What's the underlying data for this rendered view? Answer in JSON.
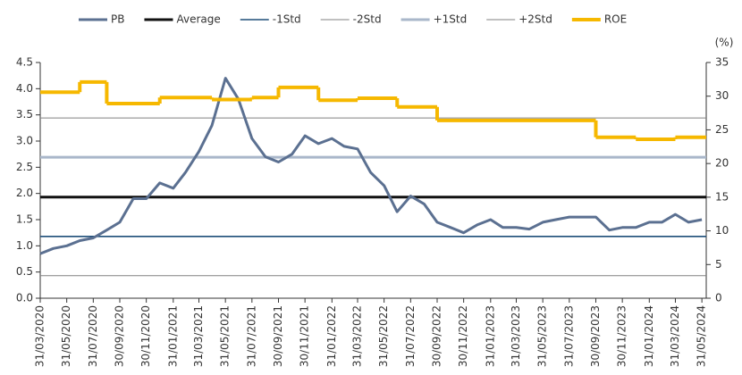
{
  "chart_data": {
    "type": "line",
    "y2label": "(%)",
    "xlim": [
      "31/03/2020",
      "10/06/2024"
    ],
    "xticks": [
      "31/03/2020",
      "31/05/2020",
      "31/07/2020",
      "30/09/2020",
      "30/11/2020",
      "31/01/2021",
      "31/03/2021",
      "31/05/2021",
      "31/07/2021",
      "30/09/2021",
      "30/11/2021",
      "31/01/2022",
      "31/03/2022",
      "31/05/2022",
      "31/07/2022",
      "30/09/2022",
      "30/11/2022",
      "31/01/2023",
      "31/03/2023",
      "31/05/2023",
      "31/07/2023",
      "30/09/2023",
      "30/11/2023",
      "31/01/2024",
      "31/03/2024",
      "31/05/2024"
    ],
    "ylim": [
      0,
      4.5
    ],
    "yticks": [
      {
        "value": 0,
        "label": "0.0"
      },
      0.5,
      {
        "value": 1,
        "label": "1.0"
      },
      1.5,
      {
        "value": 2,
        "label": "2.0"
      },
      2.5,
      {
        "value": 3,
        "label": "3.0"
      },
      3.5,
      {
        "value": 4,
        "label": "4.0"
      },
      4.5
    ],
    "y2lim": [
      0,
      35
    ],
    "y2ticks": [
      0,
      5,
      10,
      15,
      20,
      25,
      30,
      35
    ],
    "legend": "top",
    "series": [
      {
        "name": "PB",
        "kind": "line",
        "color": "#5b7091",
        "x": [
          "31/03/2020",
          "30/04/2020",
          "31/05/2020",
          "30/06/2020",
          "31/07/2020",
          "31/08/2020",
          "30/09/2020",
          "31/10/2020",
          "30/11/2020",
          "31/12/2020",
          "31/01/2021",
          "28/02/2021",
          "31/03/2021",
          "30/04/2021",
          "31/05/2021",
          "30/06/2021",
          "31/07/2021",
          "31/08/2021",
          "30/09/2021",
          "31/10/2021",
          "30/11/2021",
          "31/12/2021",
          "31/01/2022",
          "28/02/2022",
          "31/03/2022",
          "30/04/2022",
          "31/05/2022",
          "30/06/2022",
          "31/07/2022",
          "31/08/2022",
          "30/09/2022",
          "31/10/2022",
          "30/11/2022",
          "31/12/2022",
          "31/01/2023",
          "28/02/2023",
          "31/03/2023",
          "30/04/2023",
          "31/05/2023",
          "30/06/2023",
          "31/07/2023",
          "31/08/2023",
          "30/09/2023",
          "31/10/2023",
          "30/11/2023",
          "31/12/2023",
          "31/01/2024",
          "29/02/2024",
          "31/03/2024",
          "30/04/2024",
          "31/05/2024"
        ],
        "values": [
          0.85,
          0.95,
          1.0,
          1.1,
          1.15,
          1.3,
          1.45,
          1.9,
          1.9,
          2.2,
          2.1,
          2.4,
          2.8,
          3.3,
          4.2,
          3.8,
          3.05,
          2.7,
          2.6,
          2.75,
          3.1,
          2.95,
          3.05,
          2.9,
          2.85,
          2.4,
          2.15,
          1.65,
          1.95,
          1.8,
          1.45,
          1.35,
          1.25,
          1.4,
          1.5,
          1.35,
          1.35,
          1.32,
          1.45,
          1.5,
          1.55,
          1.55,
          1.55,
          1.3,
          1.35,
          1.35,
          1.45,
          1.45,
          1.6,
          1.45,
          1.5
        ]
      },
      {
        "name": "Average",
        "kind": "hline",
        "color": "#111111",
        "value": 1.93
      },
      {
        "name": "-1Std",
        "kind": "hline",
        "color": "#1f4e79",
        "value": 1.18
      },
      {
        "name": "-2Std",
        "kind": "hline",
        "color": "#808080",
        "value": 0.43
      },
      {
        "name": "+1Std",
        "kind": "hline",
        "color": "#a9b7ca",
        "value": 2.69
      },
      {
        "name": "+2Std",
        "kind": "hline",
        "color": "#808080",
        "value": 3.44
      },
      {
        "name": "ROE",
        "kind": "step",
        "axis": "y2",
        "color": "#f6b800",
        "x": [
          "31/03/2020",
          "30/06/2020",
          "31/08/2020",
          "31/12/2020",
          "30/04/2021",
          "31/07/2021",
          "30/09/2021",
          "31/12/2021",
          "31/03/2022",
          "30/06/2022",
          "30/09/2022",
          "30/09/2023",
          "31/12/2023",
          "31/03/2024"
        ],
        "values": [
          30.6,
          32.1,
          28.9,
          29.8,
          29.5,
          29.8,
          31.3,
          29.4,
          29.7,
          28.4,
          26.4,
          23.9,
          23.6,
          23.9
        ]
      }
    ]
  }
}
